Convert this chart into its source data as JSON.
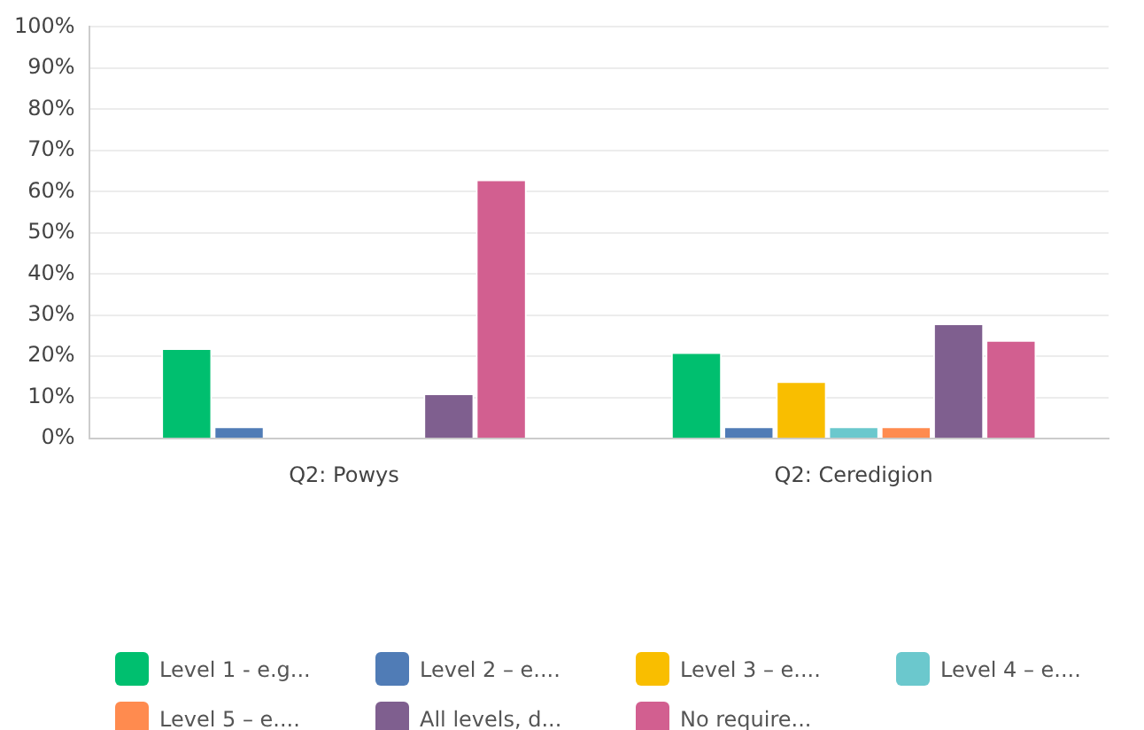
{
  "chart_data": {
    "type": "bar",
    "categories": [
      "Q2: Powys",
      "Q2: Ceredigion"
    ],
    "series": [
      {
        "name": "Level 1 - e.g...",
        "color": "#00bf6f",
        "values": [
          22,
          21
        ]
      },
      {
        "name": "Level 2 – e....",
        "color": "#507cb6",
        "values": [
          3,
          3
        ]
      },
      {
        "name": "Level 3 – e....",
        "color": "#f9be00",
        "values": [
          0,
          14
        ]
      },
      {
        "name": "Level 4 – e....",
        "color": "#6bc8cd",
        "values": [
          0,
          3
        ]
      },
      {
        "name": "Level 5 – e....",
        "color": "#ff8b4f",
        "values": [
          0,
          3
        ]
      },
      {
        "name": "All levels, d...",
        "color": "#7f5f8f",
        "values": [
          11,
          28
        ]
      },
      {
        "name": "No require...",
        "color": "#d25f90",
        "values": [
          63,
          24
        ]
      }
    ],
    "ylim": [
      0,
      100
    ],
    "yticks": [
      {
        "value": 0,
        "label": "0%"
      },
      {
        "value": 10,
        "label": "10%"
      },
      {
        "value": 20,
        "label": "20%"
      },
      {
        "value": 30,
        "label": "30%"
      },
      {
        "value": 40,
        "label": "40%"
      },
      {
        "value": 50,
        "label": "50%"
      },
      {
        "value": 60,
        "label": "60%"
      },
      {
        "value": 70,
        "label": "70%"
      },
      {
        "value": 80,
        "label": "80%"
      },
      {
        "value": 90,
        "label": "90%"
      },
      {
        "value": 100,
        "label": "100%"
      }
    ],
    "grid": "y",
    "legend": "bottom"
  }
}
